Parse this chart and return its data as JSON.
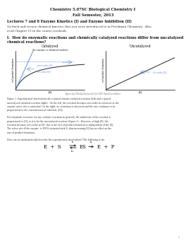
{
  "title_line1": "Chemistry 5.07SC Biological Chemistry I",
  "title_line2": "Fall Semester, 2013",
  "lecture_heading": "Lectures 7 and 8 Enzyme Kinetics (I) and Enzyme Inhibition (II)",
  "lecture_sub1": "Go back and review chemical kinetics that you were introduced to in Freshman Chemistry.  Also",
  "lecture_sub2": "read Chapter 12 in the course textbook.",
  "question_heading1": "I.  How do enzymatic reactions and chemically catalyzed reactions differ from uncatalyzed",
  "question_heading2": "chemical reactions?",
  "catalyzed_title": "Catalyzed",
  "catalyzed_subtitle": "(by enzyme or chemical catalyst)",
  "uncatalyzed_title": "Uncatalyzed",
  "catalyzed_ylabel": "v of product formation",
  "catalyzed_xlabel": "[S]",
  "uncatalyzed_ylabel": "v of product formation",
  "uncatalyzed_xlabel": "[S]",
  "zero_order_label": "zero order [S]",
  "first_order_label_cat": "1st order [S]",
  "first_order_label_uncat": "1st order [S]",
  "figure_credit": "Figure by O'Reilly Science Art for MIT OpenCourseWare",
  "figure_caption_1": "Figure 1. Experimental observations for a typical enzyme-catalyzed reaction (left) and a typical",
  "figure_caption_2": "uncatalyzed chemical reaction (right).  On the left, the reaction becomes zero order in substrate as the",
  "figure_caption_3": "enzyme active site is saturated. On the right, no saturation is observed and the rate continues to be",
  "figure_caption_4": "proportional to the concentration of substrate ([S]).",
  "para1_1": "For enzymatic reactions (or any catalytic reactions in general), the initial rate of the reaction is",
  "para1_2": "proportional to [S], as it is for the uncatalyzed reaction (Figure 1).  However, at high [S], the",
  "para1_3": "reaction becomes zero order in [S], that is the rate of product formation is independent of the [S].",
  "para1_4": "The active site of the enzyme  is 100% saturated with S, thus increasing [S] has no effect on the",
  "para1_5": "rate of product formation.",
  "para2": "How can we mathematically describe the experimental observations? The following is the",
  "background_color": "#ffffff",
  "text_color": "#333333",
  "curve_color_blue": "#5b8dd9",
  "curve_color_black": "#222222",
  "annotation_color": "#5b8dd9",
  "page_number": "1"
}
